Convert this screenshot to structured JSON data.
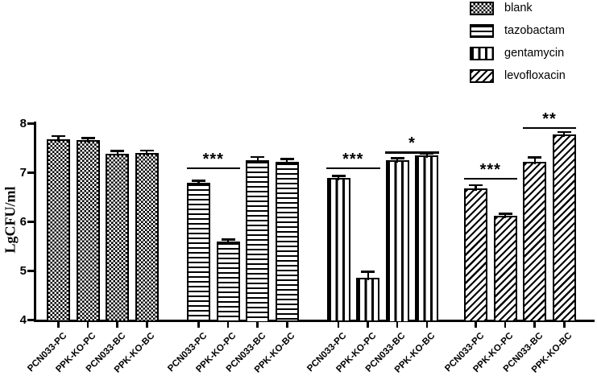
{
  "colors": {
    "background": "#ffffff",
    "ink": "#000000"
  },
  "chart_data": {
    "type": "bar",
    "title": "",
    "ylabel": "LgCFU/ml",
    "xlabel": "",
    "ylim": [
      4,
      8
    ],
    "yticks": [
      4,
      5,
      6,
      7,
      8
    ],
    "grid": false,
    "legend_position": "top-right",
    "categories": [
      "PCN033-PC",
      "PPK-KO-PC",
      "PCN033-BC",
      "PPK-KO-BC"
    ],
    "series": [
      {
        "name": "blank",
        "pattern": "checkerboard",
        "values": [
          7.68,
          7.65,
          7.37,
          7.39
        ],
        "errors": [
          0.04,
          0.03,
          0.04,
          0.03
        ]
      },
      {
        "name": "tazobactam",
        "pattern": "horizontal-stripes",
        "values": [
          6.78,
          5.59,
          7.25,
          7.21
        ],
        "errors": [
          0.03,
          0.02,
          0.04,
          0.04
        ]
      },
      {
        "name": "gentamycin",
        "pattern": "vertical-stripes",
        "values": [
          6.89,
          4.86,
          7.25,
          7.34
        ],
        "errors": [
          0.02,
          0.1,
          0.02,
          0.02
        ]
      },
      {
        "name": "levofloxacin",
        "pattern": "diagonal-stripes",
        "values": [
          6.68,
          6.11,
          7.21,
          7.77
        ],
        "errors": [
          0.04,
          0.03,
          0.07,
          0.03
        ]
      }
    ],
    "annotations": [
      {
        "series": "tazobactam",
        "from": 0,
        "to": 1,
        "label": "***",
        "y": 7.1
      },
      {
        "series": "gentamycin",
        "from": 0,
        "to": 1,
        "label": "***",
        "y": 7.1
      },
      {
        "series": "gentamycin",
        "from": 2,
        "to": 3,
        "label": "*",
        "y": 7.42
      },
      {
        "series": "levofloxacin",
        "from": 0,
        "to": 1,
        "label": "***",
        "y": 6.89
      },
      {
        "series": "levofloxacin",
        "from": 2,
        "to": 3,
        "label": "**",
        "y": 7.92
      }
    ],
    "legend": [
      "blank",
      "tazobactam",
      "gentamycin",
      "levofloxacin"
    ]
  }
}
